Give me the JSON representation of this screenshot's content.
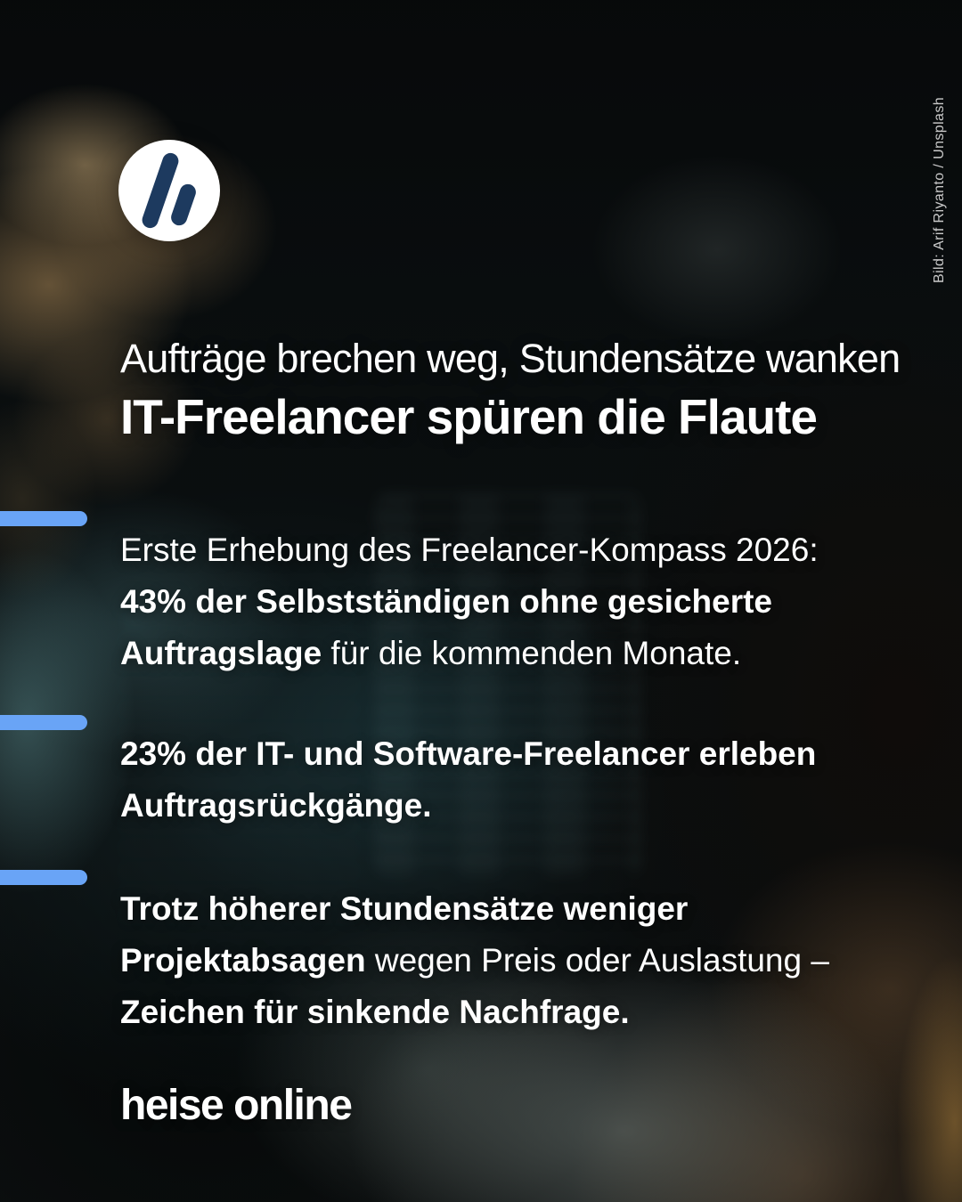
{
  "colors": {
    "accent_blue": "#69a4f6",
    "logo_navy": "#1d3a5f",
    "text_white": "#ffffff",
    "attribution_gray": "#c9c9c9"
  },
  "icons": {
    "logo": "heise-h-logo"
  },
  "headline": {
    "kicker": "Aufträge brechen weg, Stundensätze wanken",
    "title": "IT-Freelancer spüren die Flaute"
  },
  "bullets": [
    {
      "segments": [
        {
          "text": "Erste Erhebung des Freelancer-Kompass 2026:\n",
          "bold": false
        },
        {
          "text": "43% der Selbstständigen ohne gesicherte\nAuftragslage",
          "bold": true
        },
        {
          "text": " für die kommenden Monate.",
          "bold": false
        }
      ]
    },
    {
      "segments": [
        {
          "text": "23% der IT- und Software-Freelancer erleben\nAuftragsrückgänge.",
          "bold": true
        }
      ]
    },
    {
      "segments": [
        {
          "text": "Trotz höherer Stundensätze weniger\nProjektabsagen",
          "bold": true
        },
        {
          "text": " wegen Preis oder Auslastung –\n",
          "bold": false
        },
        {
          "text": "Zeichen für sinkende Nachfrage.",
          "bold": true
        }
      ]
    }
  ],
  "footer": {
    "brand": "heise online"
  },
  "attribution": {
    "label": "Bild: Arif Riyanto / Unsplash"
  }
}
